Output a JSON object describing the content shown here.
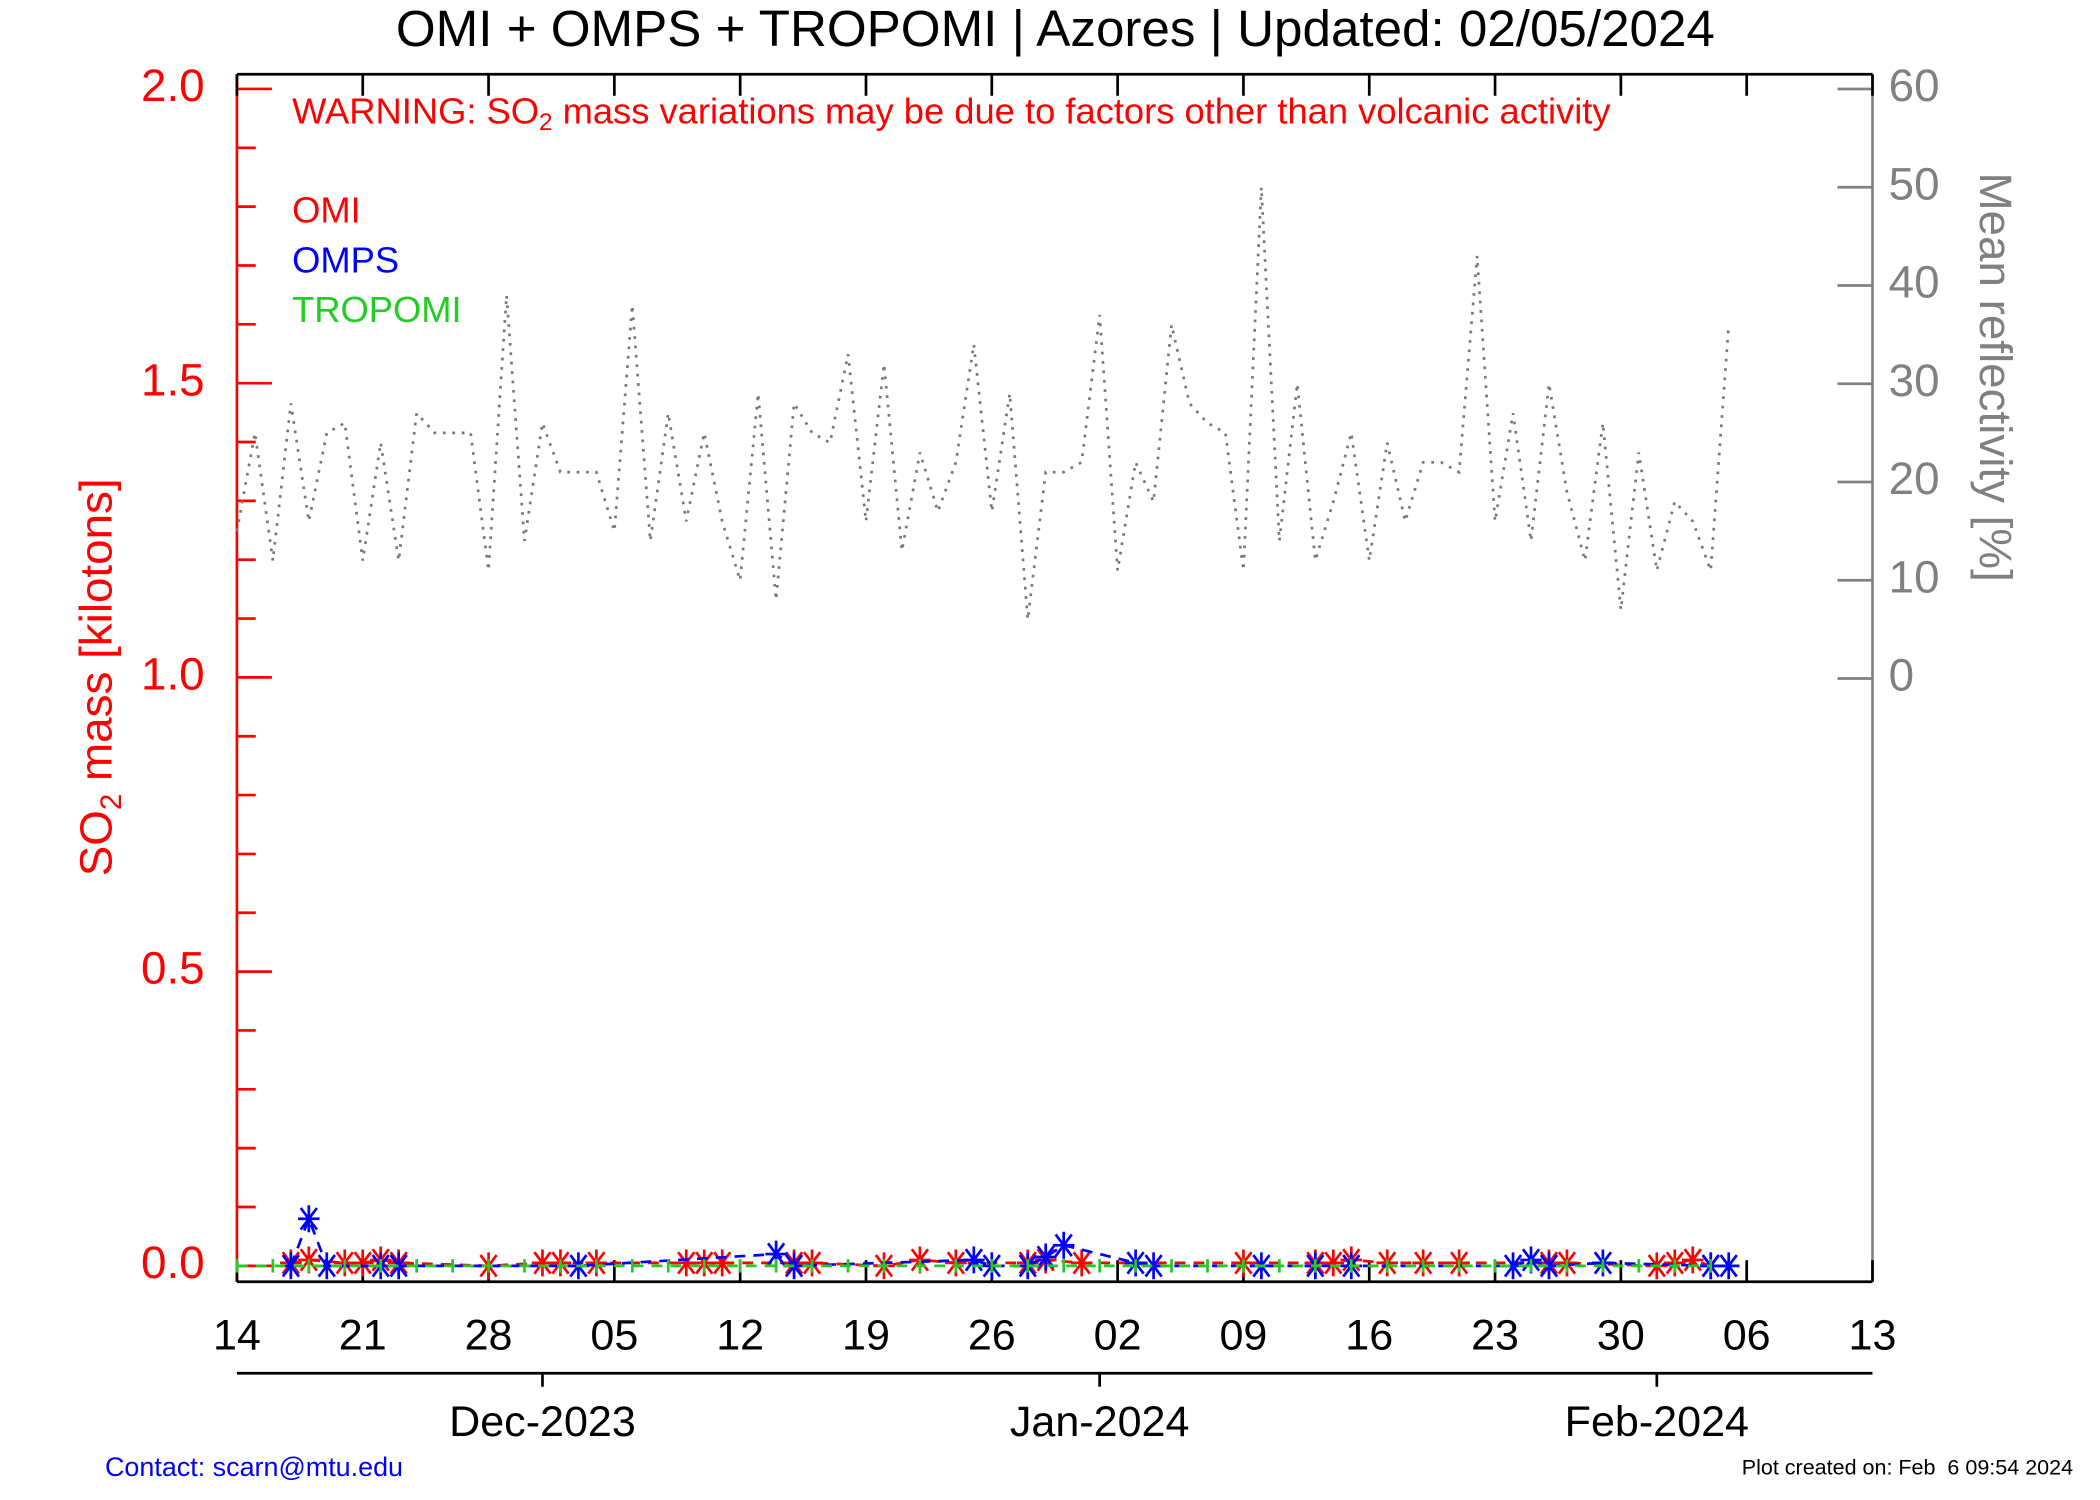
{
  "chart_data": {
    "type": "line",
    "title": "OMI + OMPS + TROPOMI | Azores | Updated: 02/05/2024",
    "warning": [
      "WARNING: SO",
      "2",
      " mass variations may be due to factors other than volcanic activity"
    ],
    "ylabel": [
      "SO",
      "2",
      " mass [kilotons]"
    ],
    "y2label": "Mean reflectivity [%]",
    "contact": "Contact: scarn@mtu.edu",
    "created": "Plot created on: Feb  6 09:54 2024",
    "xlim": [
      "2023-11-14",
      "2024-02-13"
    ],
    "xticks": [
      {
        "value": "2023-11-14",
        "label": "14"
      },
      {
        "value": "2023-11-21",
        "label": "21"
      },
      {
        "value": "2023-11-28",
        "label": "28"
      },
      {
        "value": "2023-12-05",
        "label": "05"
      },
      {
        "value": "2023-12-12",
        "label": "12"
      },
      {
        "value": "2023-12-19",
        "label": "19"
      },
      {
        "value": "2023-12-26",
        "label": "26"
      },
      {
        "value": "2024-01-02",
        "label": "02"
      },
      {
        "value": "2024-01-09",
        "label": "09"
      },
      {
        "value": "2024-01-16",
        "label": "16"
      },
      {
        "value": "2024-01-23",
        "label": "23"
      },
      {
        "value": "2024-01-30",
        "label": "30"
      },
      {
        "value": "2024-02-06",
        "label": "06"
      },
      {
        "value": "2024-02-13",
        "label": "13"
      }
    ],
    "month_ticks": [
      {
        "value": "2023-12-01",
        "label": "Dec-2023"
      },
      {
        "value": "2024-01-01",
        "label": "Jan-2024"
      },
      {
        "value": "2024-02-01",
        "label": "Feb-2024"
      }
    ],
    "ylim": [
      -0.027,
      2.025
    ],
    "yticks": [
      {
        "value": 0,
        "label": "0.0"
      },
      0.5,
      {
        "value": 1,
        "label": "1.0"
      },
      1.5,
      {
        "value": 2,
        "label": "2.0"
      }
    ],
    "yminorticks": [
      0.1,
      0.2,
      0.3,
      0.4,
      0.6,
      0.7,
      0.8,
      0.9,
      1.1,
      1.2,
      1.3,
      1.4,
      1.6,
      1.7,
      1.8,
      1.9
    ],
    "y2lim": [
      -61.4,
      61.5
    ],
    "y2ticks": [
      0,
      10,
      20,
      30,
      40,
      50,
      60
    ],
    "series": [
      {
        "name": "OMI",
        "color": "#ff0000",
        "marker": "asterisk",
        "x": [
          "2023-11-17",
          "2023-11-18",
          "2023-11-20",
          "2023-11-21",
          "2023-11-22",
          "2023-11-23",
          "2023-11-28",
          "2023-12-01",
          "2023-12-02",
          "2023-12-04",
          "2023-12-09",
          "2023-12-10",
          "2023-12-11",
          "2023-12-15",
          "2023-12-16",
          "2023-12-20",
          "2023-12-22",
          "2023-12-24",
          "2023-12-28",
          "2023-12-29",
          "2023-12-31",
          "2024-01-09",
          "2024-01-13",
          "2024-01-14",
          "2024-01-15",
          "2024-01-17",
          "2024-01-19",
          "2024-01-21",
          "2024-01-26",
          "2024-01-27",
          "2024-02-01",
          "2024-02-02",
          "2024-02-03",
          "2024-02-04"
        ],
        "values": [
          0.005,
          0.01,
          0.005,
          0.005,
          0.01,
          0.005,
          0,
          0.005,
          0.005,
          0.005,
          0.005,
          0.005,
          0.005,
          0.005,
          0.005,
          0,
          0.01,
          0.005,
          0.005,
          0.01,
          0.005,
          0.005,
          0.005,
          0.005,
          0.01,
          0.005,
          0.005,
          0.005,
          0.005,
          0.005,
          0,
          0.005,
          0.01,
          0
        ]
      },
      {
        "name": "OMPS",
        "color": "#0000ff",
        "marker": "asterisk",
        "x": [
          "2023-11-17",
          "2023-11-18",
          "2023-11-19",
          "2023-11-22",
          "2023-11-23",
          "2023-12-03",
          "2023-12-14",
          "2023-12-15",
          "2023-12-25",
          "2023-12-26",
          "2023-12-28",
          "2023-12-29",
          "2023-12-30",
          "2024-01-03",
          "2024-01-04",
          "2024-01-10",
          "2024-01-13",
          "2024-01-15",
          "2024-01-24",
          "2024-01-25",
          "2024-01-26",
          "2024-01-29",
          "2024-02-04",
          "2024-02-05"
        ],
        "values": [
          0,
          0.08,
          0,
          0,
          0,
          0,
          0.02,
          0,
          0.01,
          0,
          0,
          0.015,
          0.035,
          0.005,
          0,
          0,
          0,
          0,
          0,
          0.01,
          0,
          0.005,
          0,
          0
        ]
      },
      {
        "name": "TROPOMI",
        "color": "#22cc22",
        "marker": "tick",
        "x": [
          "2023-11-14",
          "2023-11-16",
          "2023-11-18",
          "2023-11-20",
          "2023-11-22",
          "2023-11-24",
          "2023-11-26",
          "2023-11-28",
          "2023-11-30",
          "2023-12-02",
          "2023-12-04",
          "2023-12-06",
          "2023-12-08",
          "2023-12-10",
          "2023-12-12",
          "2023-12-14",
          "2023-12-16",
          "2023-12-18",
          "2023-12-20",
          "2023-12-22",
          "2023-12-24",
          "2023-12-26",
          "2023-12-28",
          "2023-12-30",
          "2024-01-01",
          "2024-01-03",
          "2024-01-05",
          "2024-01-07",
          "2024-01-09",
          "2024-01-11",
          "2024-01-13",
          "2024-01-15",
          "2024-01-17",
          "2024-01-19",
          "2024-01-21",
          "2024-01-23",
          "2024-01-25",
          "2024-01-27",
          "2024-01-29",
          "2024-01-31",
          "2024-02-02",
          "2024-02-04"
        ],
        "values": [
          0,
          0,
          0,
          0,
          0,
          0,
          0,
          0,
          0,
          0,
          0,
          0,
          0,
          0,
          0,
          0,
          0,
          0,
          0,
          0,
          0,
          0,
          0,
          0,
          0,
          0,
          0,
          0,
          0,
          0,
          0,
          0,
          0,
          0,
          0,
          0,
          0,
          0,
          0,
          0,
          0,
          0
        ]
      },
      {
        "name": "Mean reflectivity",
        "color": "#777777",
        "axis": "y2",
        "marker": "none",
        "legend": false,
        "start": "2023-11-14",
        "values": [
          15,
          25,
          12,
          28,
          16,
          25,
          26,
          12,
          24,
          12,
          27,
          25,
          25,
          25,
          11,
          39,
          14,
          26,
          21,
          21,
          21,
          15,
          38,
          14,
          27,
          16,
          25,
          16,
          10,
          29,
          8,
          28,
          25,
          24,
          33,
          16,
          32,
          13,
          23,
          17,
          22,
          34,
          17,
          29,
          6,
          21,
          21,
          22,
          37,
          11,
          22,
          18,
          36,
          28,
          26,
          25,
          11,
          50,
          14,
          30,
          12,
          18,
          25,
          12,
          24,
          16,
          22,
          22,
          21,
          43,
          16,
          27,
          14,
          30,
          19,
          12,
          26,
          7,
          23,
          11,
          18,
          16,
          11,
          36
        ]
      }
    ]
  }
}
